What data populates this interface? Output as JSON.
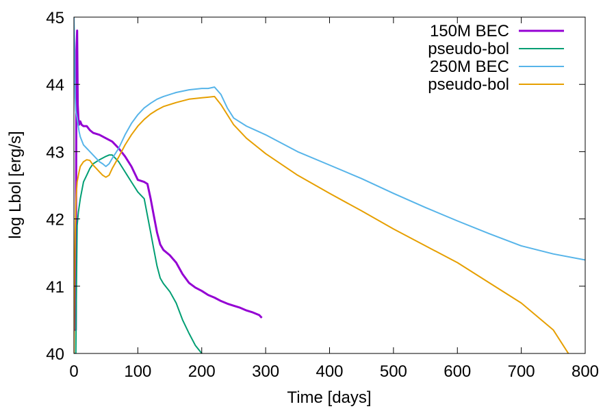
{
  "chart_data": {
    "type": "line",
    "xlabel": "Time [days]",
    "ylabel": "log Lbol [erg/s]",
    "xlim": [
      0,
      800
    ],
    "ylim": [
      40,
      45
    ],
    "xticks": [
      0,
      100,
      200,
      300,
      400,
      500,
      600,
      700,
      800
    ],
    "yticks": [
      40,
      41,
      42,
      43,
      44,
      45
    ],
    "grid": false,
    "legend_position": "top-right",
    "series": [
      {
        "name": "150M BEC",
        "color": "#9400d3",
        "x": [
          0,
          2,
          3,
          4,
          5,
          6,
          7,
          8,
          10,
          12,
          15,
          20,
          25,
          30,
          40,
          50,
          60,
          70,
          80,
          90,
          100,
          110,
          115,
          120,
          125,
          130,
          135,
          140,
          150,
          160,
          170,
          180,
          190,
          200,
          210,
          220,
          230,
          240,
          250,
          260,
          270,
          280,
          290,
          294
        ],
        "y": [
          40.35,
          40.35,
          40.35,
          44.5,
          44.8,
          43.7,
          43.5,
          43.4,
          43.45,
          43.4,
          43.38,
          43.38,
          43.32,
          43.28,
          43.25,
          43.2,
          43.15,
          43.05,
          42.93,
          42.78,
          42.58,
          42.55,
          42.52,
          42.3,
          42.05,
          41.8,
          41.62,
          41.54,
          41.46,
          41.35,
          41.18,
          41.05,
          40.98,
          40.93,
          40.87,
          40.83,
          40.78,
          40.74,
          40.71,
          40.68,
          40.64,
          40.61,
          40.57,
          40.53
        ]
      },
      {
        "name": "pseudo-bol",
        "color": "#009e73",
        "x": [
          0,
          2,
          3,
          4,
          5,
          7,
          10,
          15,
          20,
          25,
          30,
          40,
          50,
          55,
          60,
          70,
          80,
          90,
          100,
          105,
          110,
          115,
          120,
          125,
          130,
          135,
          140,
          150,
          160,
          170,
          180,
          190,
          200
        ],
        "y": [
          40.0,
          40.0,
          40.0,
          41.0,
          41.9,
          42.1,
          42.3,
          42.55,
          42.65,
          42.75,
          42.82,
          42.88,
          42.93,
          42.95,
          42.95,
          42.85,
          42.7,
          42.55,
          42.4,
          42.35,
          42.3,
          42.05,
          41.8,
          41.55,
          41.3,
          41.12,
          41.04,
          40.92,
          40.75,
          40.5,
          40.3,
          40.12,
          40.0
        ]
      },
      {
        "name": "250M BEC",
        "color": "#56b4e9",
        "x": [
          0,
          1,
          2,
          3,
          5,
          8,
          10,
          15,
          20,
          30,
          40,
          45,
          50,
          55,
          60,
          70,
          80,
          90,
          100,
          110,
          120,
          130,
          140,
          160,
          180,
          200,
          210,
          220,
          230,
          240,
          250,
          270,
          300,
          350,
          400,
          450,
          500,
          550,
          600,
          650,
          700,
          750,
          800
        ],
        "y": [
          45.0,
          44.6,
          43.8,
          43.6,
          43.5,
          43.3,
          43.22,
          43.1,
          43.05,
          42.95,
          42.85,
          42.82,
          42.78,
          42.82,
          42.9,
          43.05,
          43.25,
          43.42,
          43.55,
          43.65,
          43.72,
          43.78,
          43.82,
          43.88,
          43.92,
          43.94,
          43.94,
          43.96,
          43.85,
          43.65,
          43.5,
          43.38,
          43.25,
          43.0,
          42.8,
          42.6,
          42.38,
          42.17,
          41.97,
          41.78,
          41.6,
          41.48,
          41.39
        ]
      },
      {
        "name": "pseudo-bol",
        "color": "#e69f00",
        "x": [
          0,
          1,
          2,
          3,
          4,
          5,
          8,
          10,
          15,
          20,
          25,
          30,
          35,
          40,
          45,
          50,
          55,
          60,
          70,
          80,
          90,
          100,
          110,
          120,
          130,
          140,
          160,
          180,
          200,
          210,
          220,
          230,
          240,
          250,
          270,
          300,
          350,
          400,
          450,
          500,
          550,
          600,
          650,
          700,
          750,
          775
        ],
        "y": [
          40.0,
          41.0,
          41.8,
          42.2,
          42.4,
          42.55,
          42.7,
          42.78,
          42.85,
          42.88,
          42.87,
          42.8,
          42.75,
          42.7,
          42.65,
          42.62,
          42.65,
          42.75,
          42.92,
          43.1,
          43.25,
          43.38,
          43.48,
          43.56,
          43.62,
          43.67,
          43.73,
          43.78,
          43.8,
          43.81,
          43.82,
          43.7,
          43.55,
          43.4,
          43.2,
          42.97,
          42.65,
          42.38,
          42.12,
          41.85,
          41.6,
          41.35,
          41.05,
          40.75,
          40.35,
          39.98
        ]
      }
    ]
  }
}
